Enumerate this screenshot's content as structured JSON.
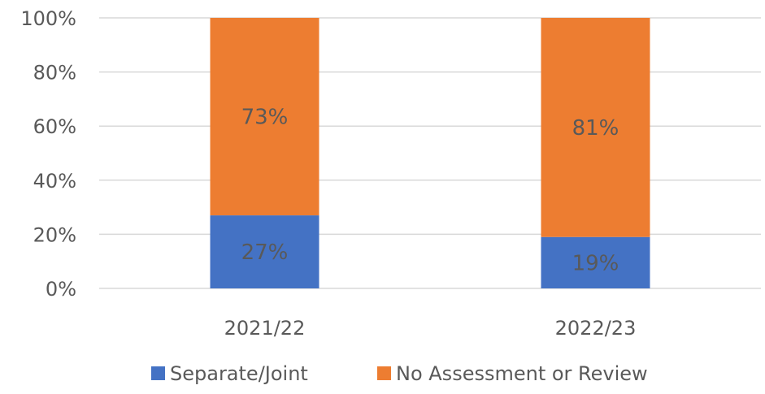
{
  "chart_data": {
    "type": "bar",
    "stacked": true,
    "percent_stacked": true,
    "categories": [
      "2021/22",
      "2022/23"
    ],
    "series": [
      {
        "name": "Separate/Joint",
        "values": [
          27,
          19
        ],
        "labels": [
          "27%",
          "19%"
        ],
        "color": "#4472C4"
      },
      {
        "name": "No Assessment or Review",
        "values": [
          73,
          81
        ],
        "labels": [
          "73%",
          "81%"
        ],
        "color": "#ED7D31"
      }
    ],
    "y_ticks": [
      "0%",
      "20%",
      "40%",
      "60%",
      "80%",
      "100%"
    ],
    "ylim": [
      0,
      100
    ],
    "grid": true,
    "legend_position": "bottom",
    "gridline_color": "#D9D9D9"
  }
}
